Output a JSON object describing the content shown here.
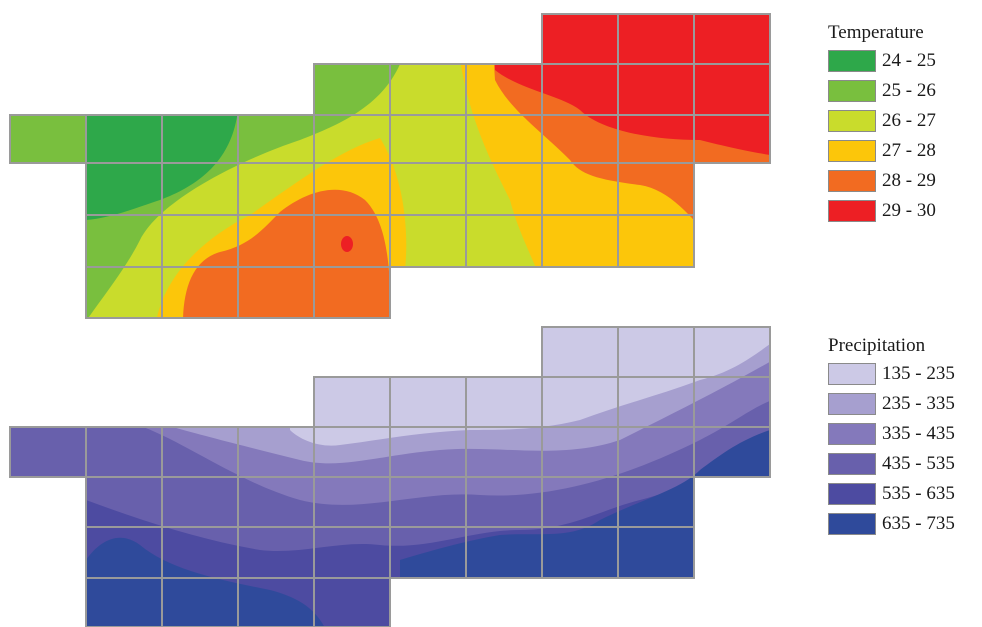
{
  "temperature": {
    "legend_title": "Temperature",
    "classes": [
      {
        "range": "24 - 25",
        "color": "#2ea84a"
      },
      {
        "range": "25 - 26",
        "color": "#79bf3e"
      },
      {
        "range": "26 - 27",
        "color": "#c9dc2c"
      },
      {
        "range": "27 - 28",
        "color": "#fcc60a"
      },
      {
        "range": "28 - 29",
        "color": "#f26b21"
      },
      {
        "range": "29 - 30",
        "color": "#ed1f24"
      }
    ]
  },
  "precipitation": {
    "legend_title": "Precipitation",
    "classes": [
      {
        "range": "135 - 235",
        "color": "#ccc9e6"
      },
      {
        "range": "235 - 335",
        "color": "#a69fcf"
      },
      {
        "range": "335 - 435",
        "color": "#8479bb"
      },
      {
        "range": "435 - 535",
        "color": "#6860ac"
      },
      {
        "range": "535 - 635",
        "color": "#4d4ba1"
      },
      {
        "range": "635 - 735",
        "color": "#2f4a9b"
      }
    ]
  },
  "grid_color": "#9a9a9a"
}
